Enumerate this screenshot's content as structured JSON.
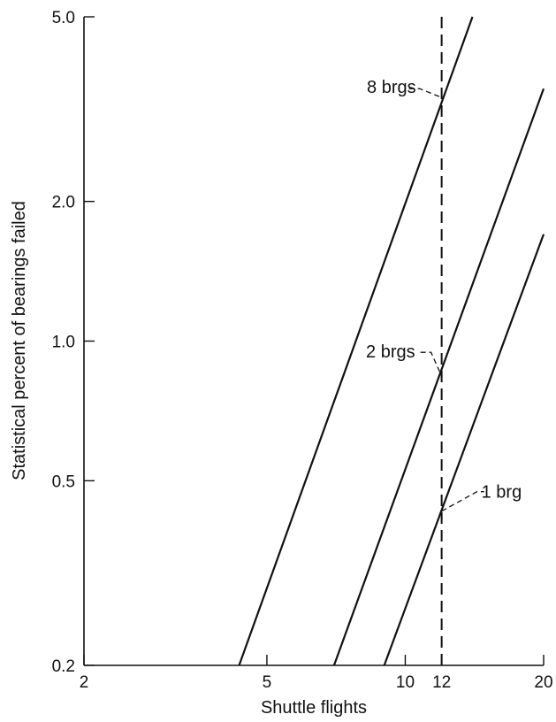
{
  "chart_data": {
    "type": "line",
    "title": "",
    "xlabel": "Shuttle flights",
    "ylabel": "Statistical percent of bearings failed",
    "x_scale": "log",
    "y_scale": "log",
    "xlim": [
      2,
      20
    ],
    "ylim": [
      0.2,
      5.0
    ],
    "x_ticks": [
      2,
      5,
      10,
      12,
      20
    ],
    "x_tick_labels": [
      "2",
      "5",
      "10",
      "12",
      "20"
    ],
    "y_ticks": [
      0.2,
      0.5,
      1.0,
      2.0,
      5.0
    ],
    "y_tick_labels": [
      "0.2",
      "0.5",
      "1.0",
      "2.0",
      "5.0"
    ],
    "grid": false,
    "series": [
      {
        "name": "8 brgs",
        "x": [
          4.35,
          14.0
        ],
        "y": [
          0.2,
          5.0
        ],
        "color": "#111111"
      },
      {
        "name": "2 brgs",
        "x": [
          7.0,
          20.0
        ],
        "y": [
          0.2,
          3.5
        ],
        "color": "#111111"
      },
      {
        "name": "1 brg",
        "x": [
          9.0,
          20.0
        ],
        "y": [
          0.2,
          1.7
        ],
        "color": "#111111"
      }
    ],
    "reference_lines": [
      {
        "orientation": "vertical",
        "x": 12,
        "style": "dashed",
        "color": "#111111"
      }
    ],
    "annotations": [
      {
        "text": "8 brgs",
        "x": 12,
        "y": 3.35
      },
      {
        "text": "2 brgs",
        "x": 12,
        "y": 0.84
      },
      {
        "text": "1 brg",
        "x": 12,
        "y": 0.43
      }
    ]
  }
}
